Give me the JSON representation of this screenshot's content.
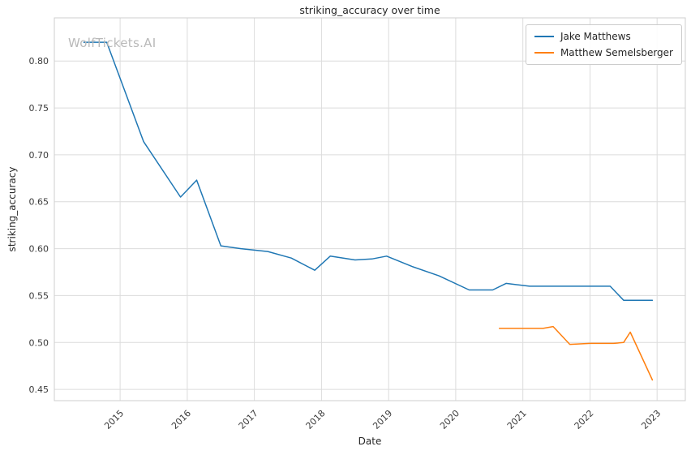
{
  "chart_data": {
    "type": "line",
    "title": "striking_accuracy over time",
    "xlabel": "Date",
    "ylabel": "striking_accuracy",
    "watermark": "WolfTickets.AI",
    "grid": true,
    "legend_position": "upper right",
    "xlim": [
      2014.02,
      2023.42
    ],
    "ylim": [
      0.438,
      0.846
    ],
    "x_ticks": [
      2015,
      2016,
      2017,
      2018,
      2019,
      2020,
      2021,
      2022,
      2023
    ],
    "x_tick_labels": [
      "2015",
      "2016",
      "2017",
      "2018",
      "2019",
      "2020",
      "2021",
      "2022",
      "2023"
    ],
    "y_ticks": [
      0.45,
      0.5,
      0.55,
      0.6,
      0.65,
      0.7,
      0.75,
      0.8
    ],
    "y_tick_labels": [
      "0.45",
      "0.50",
      "0.55",
      "0.60",
      "0.65",
      "0.70",
      "0.75",
      "0.80"
    ],
    "series": [
      {
        "name": "Jake Matthews",
        "color": "#1f77b4",
        "points": [
          [
            2014.46,
            0.82
          ],
          [
            2014.8,
            0.82
          ],
          [
            2015.35,
            0.714
          ],
          [
            2015.9,
            0.655
          ],
          [
            2016.14,
            0.673
          ],
          [
            2016.5,
            0.603
          ],
          [
            2016.8,
            0.6
          ],
          [
            2017.2,
            0.597
          ],
          [
            2017.55,
            0.59
          ],
          [
            2017.9,
            0.577
          ],
          [
            2018.13,
            0.592
          ],
          [
            2018.5,
            0.588
          ],
          [
            2018.75,
            0.589
          ],
          [
            2018.97,
            0.592
          ],
          [
            2019.35,
            0.581
          ],
          [
            2019.75,
            0.571
          ],
          [
            2020.2,
            0.556
          ],
          [
            2020.55,
            0.556
          ],
          [
            2020.75,
            0.563
          ],
          [
            2021.1,
            0.56
          ],
          [
            2021.45,
            0.56
          ],
          [
            2021.8,
            0.56
          ],
          [
            2022.1,
            0.56
          ],
          [
            2022.3,
            0.56
          ],
          [
            2022.5,
            0.545
          ],
          [
            2022.93,
            0.545
          ]
        ]
      },
      {
        "name": "Matthew Semelsberger",
        "color": "#ff7f0e",
        "points": [
          [
            2020.65,
            0.515
          ],
          [
            2021.0,
            0.515
          ],
          [
            2021.3,
            0.515
          ],
          [
            2021.45,
            0.517
          ],
          [
            2021.7,
            0.498
          ],
          [
            2022.0,
            0.499
          ],
          [
            2022.35,
            0.499
          ],
          [
            2022.5,
            0.5
          ],
          [
            2022.6,
            0.511
          ],
          [
            2022.93,
            0.46
          ]
        ]
      }
    ]
  }
}
